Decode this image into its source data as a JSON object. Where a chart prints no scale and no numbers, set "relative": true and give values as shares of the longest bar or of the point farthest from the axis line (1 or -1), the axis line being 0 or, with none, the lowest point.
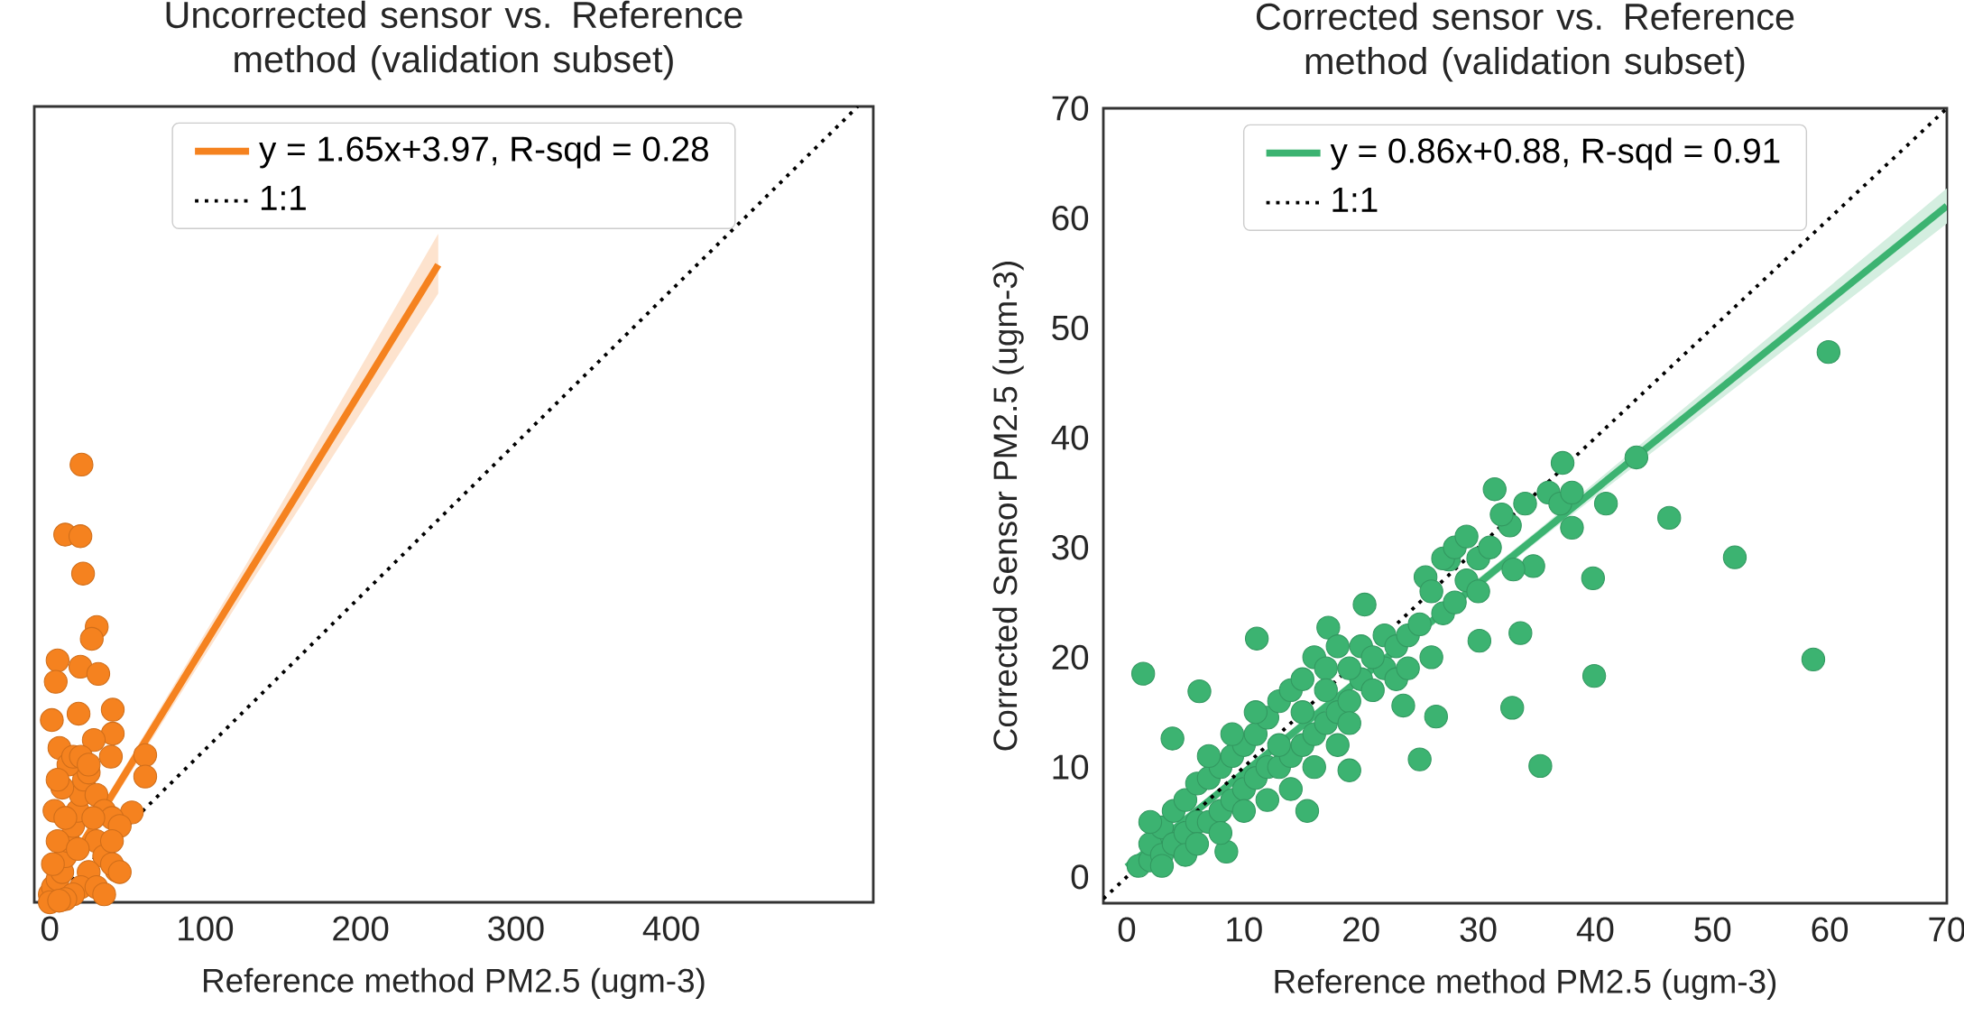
{
  "chart_data": [
    {
      "type": "scatter",
      "title": "Uncorrected sensor vs. Reference method (validation subset)",
      "xlabel": "Reference method PM2.5 (ugm-3)",
      "xlim": [
        -10,
        530
      ],
      "relative": true,
      "xticks": [
        0,
        100,
        200,
        300,
        400
      ],
      "tick_labels": "x",
      "legend": "top",
      "series": [
        {
          "marker": "circle",
          "color": "#f5821f",
          "x": [
            20.4,
            9.9,
            19.7,
            21.4,
            30.2,
            27,
            5,
            19.7,
            31.2,
            40.5,
            18.5,
            40.5,
            28.3,
            61.4,
            61.4,
            39.3,
            3.8,
            1.3,
            6.2,
            52.8,
            43,
            0,
            2,
            5,
            8,
            10,
            12,
            15,
            18,
            20,
            22,
            25,
            5,
            3,
            8,
            12,
            15,
            20,
            25,
            30,
            35,
            40,
            45,
            30,
            35,
            40,
            25,
            20,
            15,
            10,
            30,
            45,
            28,
            18,
            10,
            5,
            2,
            0,
            6,
            35,
            40
          ],
          "values": [
            0.55,
            0.462,
            0.46,
            0.413,
            0.346,
            0.331,
            0.304,
            0.296,
            0.287,
            0.242,
            0.237,
            0.212,
            0.204,
            0.185,
            0.158,
            0.183,
            0.277,
            0.229,
            0.194,
            0.113,
            0.04,
            0.01,
            0.019,
            0.029,
            0.038,
            0.058,
            0.077,
            0.096,
            0.115,
            0.135,
            0.154,
            0.163,
            0.077,
            0.115,
            0.144,
            0.173,
            0.183,
            0.183,
            0.173,
            0.135,
            0.115,
            0.106,
            0.096,
            0.077,
            0.058,
            0.048,
            0.038,
            0.019,
            0.01,
            0.004,
            0.019,
            0.038,
            0.106,
            0.067,
            0.106,
            0.154,
            0.048,
            0,
            0.002,
            0.01,
            0.077
          ]
        },
        {
          "type": "line",
          "marker": "none",
          "name": "y = 1.65x+3.97,  R-sqd = 0.28",
          "color": "#f5821f",
          "x": [
            0,
            125,
            250
          ],
          "values": [
            0.0076,
            0.4043,
            0.8009
          ],
          "lower": [
            0.002,
            0.388,
            0.765
          ],
          "upper": [
            0.013,
            0.42,
            0.84
          ]
        },
        {
          "type": "line",
          "marker": "none",
          "name": "1:1",
          "color": "#000000",
          "line_style": "dotted",
          "x": [
            10,
            520
          ],
          "values": [
            0.019,
            1
          ]
        }
      ]
    },
    {
      "type": "scatter",
      "title": "Corrected sensor vs. Reference method (validation subset)",
      "xlabel": "Reference method PM2.5 (ugm-3)",
      "ylabel": "Corrected Sensor PM2.5 (ugm-3)",
      "xlim": [
        -2,
        70
      ],
      "ylim": [
        -2.4,
        70
      ],
      "xticks": [
        0,
        10,
        20,
        30,
        40,
        50,
        60,
        70
      ],
      "yticks": [
        0,
        10,
        20,
        30,
        40,
        50,
        60,
        70
      ],
      "legend": "top",
      "series": [
        {
          "marker": "circle",
          "color": "#3cb371",
          "x": [
            59.9,
            58.6,
            51.9,
            46.3,
            43.5,
            40.9,
            39.8,
            39.9,
            37.2,
            35.3,
            33.6,
            32.9,
            31.4,
            25.0,
            26.4,
            20.3,
            1.4,
            6.2,
            8.5,
            11.1,
            17.2,
            34.7,
            38.0,
            30.1,
            15.4,
            19.0,
            23.6,
            27.5,
            25.5,
            32.7,
            3.9,
            1,
            2,
            2,
            3,
            3,
            4,
            4,
            5,
            5,
            6,
            6,
            7,
            7,
            8,
            8,
            9,
            9,
            10,
            10,
            11,
            11,
            12,
            12,
            13,
            13,
            14,
            14,
            15,
            15,
            16,
            16,
            17,
            17,
            18,
            18,
            19,
            19,
            20,
            20,
            21,
            22,
            22,
            23,
            23,
            24,
            24,
            25,
            26,
            26,
            27,
            27,
            28,
            28,
            29,
            29,
            30,
            30,
            31,
            32,
            33,
            34,
            36,
            37,
            38,
            5,
            3,
            6,
            2,
            7,
            9,
            11,
            13,
            15,
            17,
            19,
            21,
            14,
            16,
            18,
            12,
            10,
            8
          ],
          "values": [
            47.8,
            19.8,
            29.1,
            32.7,
            38.2,
            34.0,
            27.2,
            18.3,
            37.7,
            10.1,
            22.2,
            15.4,
            35.3,
            10.7,
            14.6,
            24.8,
            18.5,
            16.9,
            2.3,
            21.7,
            22.7,
            28.3,
            31.8,
            21.5,
            6.0,
            9.7,
            15.6,
            28.9,
            27.3,
            32.0,
            12.6,
            1,
            1.5,
            3,
            2,
            4.5,
            3,
            6,
            4,
            7,
            5,
            8.5,
            5,
            9,
            6,
            10,
            7,
            11,
            8,
            12,
            9,
            13,
            10,
            14.5,
            10,
            16,
            11,
            17,
            12,
            18,
            13,
            20,
            14,
            19,
            15,
            21,
            16,
            14,
            18,
            21,
            17,
            19,
            22,
            18,
            21,
            22,
            19,
            23,
            26,
            20,
            24,
            29,
            25,
            30,
            27,
            31,
            29,
            26,
            30,
            33,
            28,
            34,
            35,
            34,
            35,
            2,
            1,
            3,
            5,
            11,
            13,
            15,
            12,
            15,
            17,
            19,
            20,
            8,
            10,
            12,
            7,
            6,
            4
          ]
        },
        {
          "type": "line",
          "marker": "none",
          "name": "y = 0.86x+0.88,  R-sqd = 0.91",
          "color": "#3cb371",
          "x": [
            0,
            35,
            70
          ],
          "values": [
            0.9,
            31,
            61.1
          ],
          "lower": [
            0.5,
            30.5,
            59.5
          ],
          "upper": [
            1.3,
            31.5,
            62.7
          ]
        },
        {
          "type": "line",
          "marker": "none",
          "name": "1:1",
          "color": "#000000",
          "line_style": "dotted",
          "x": [
            -2,
            70
          ],
          "values": [
            -2,
            70
          ]
        }
      ]
    }
  ]
}
